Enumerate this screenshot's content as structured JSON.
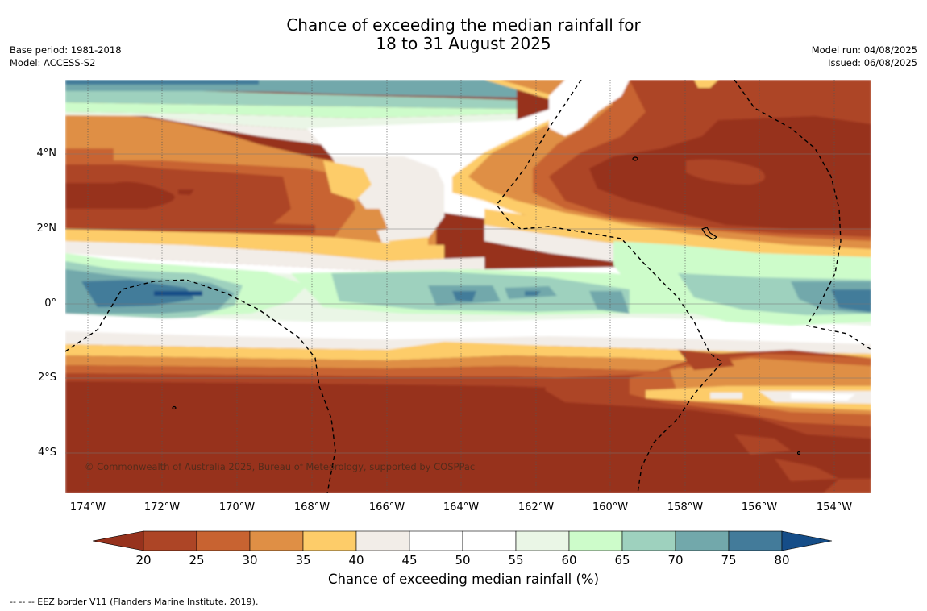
{
  "title": {
    "line1": "Chance of exceeding the median rainfall for",
    "line2": "18 to 31 August 2025"
  },
  "meta_left": {
    "base_period": "Base period: 1981-2018",
    "model": "Model: ACCESS-S2"
  },
  "meta_right": {
    "model_run": "Model run: 04/08/2025",
    "issued": "Issued: 06/08/2025"
  },
  "map": {
    "latitude_labels": [
      "4°N",
      "2°N",
      "0°",
      "2°S",
      "4°S"
    ],
    "longitude_labels": [
      "174°W",
      "172°W",
      "170°W",
      "168°W",
      "166°W",
      "164°W",
      "162°W",
      "160°W",
      "158°W",
      "156°W",
      "154°W"
    ],
    "copyright": "© Commonwealth of Australia 2025, Bureau of Meteorology, supported by COSPPac",
    "zones": [
      {
        "lat_band": "north (~4.5°N to 5.8°N)",
        "west": "45-65",
        "east": "20-35"
      },
      {
        "lat_band": "north (~2°N to 4°N)",
        "west": "20-35",
        "center": "40-50",
        "east": "<20-25"
      },
      {
        "lat_band": "equator (~1°S to 1°N)",
        "west": "70-80",
        "center": "60-75",
        "east": "65-80"
      },
      {
        "lat_band": "south (~1.5°S to 3°S)",
        "west": "20-35",
        "east": "25-45"
      },
      {
        "lat_band": "south (~3°S to 5.2°S)",
        "all": "<20"
      }
    ]
  },
  "colorbar": {
    "ticks": [
      "20",
      "25",
      "30",
      "35",
      "40",
      "45",
      "50",
      "55",
      "60",
      "65",
      "70",
      "75",
      "80"
    ],
    "colors": [
      "#97321d",
      "#ad4526",
      "#c86331",
      "#df8f45",
      "#fdcc69",
      "#f2ede8",
      "#ffffff",
      "#ffffff",
      "#eaf6e6",
      "#cdfcca",
      "#9ed1be",
      "#72a8ab",
      "#437b9a",
      "#154d88"
    ],
    "label": "Chance of exceeding median rainfall (%)"
  },
  "footnote": "-- -- -- EEZ border V11 (Flanders Marine Institute, 2019)."
}
